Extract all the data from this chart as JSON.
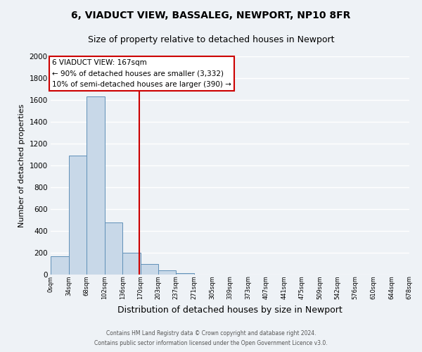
{
  "title": "6, VIADUCT VIEW, BASSALEG, NEWPORT, NP10 8FR",
  "subtitle": "Size of property relative to detached houses in Newport",
  "xlabel": "Distribution of detached houses by size in Newport",
  "ylabel": "Number of detached properties",
  "bin_edges": [
    0,
    34,
    68,
    102,
    136,
    170,
    203,
    237,
    271,
    305,
    339,
    373,
    407,
    441,
    475,
    509,
    542,
    576,
    610,
    644,
    678
  ],
  "bar_heights": [
    170,
    1090,
    1630,
    480,
    200,
    100,
    40,
    15,
    0,
    0,
    0,
    0,
    0,
    0,
    0,
    0,
    0,
    0,
    0,
    0
  ],
  "bar_color": "#c8d8e8",
  "bar_edgecolor": "#6090b8",
  "vline_x": 167,
  "vline_color": "#cc0000",
  "ylim": [
    0,
    2000
  ],
  "yticks": [
    0,
    200,
    400,
    600,
    800,
    1000,
    1200,
    1400,
    1600,
    1800,
    2000
  ],
  "xtick_labels": [
    "0sqm",
    "34sqm",
    "68sqm",
    "102sqm",
    "136sqm",
    "170sqm",
    "203sqm",
    "237sqm",
    "271sqm",
    "305sqm",
    "339sqm",
    "373sqm",
    "407sqm",
    "441sqm",
    "475sqm",
    "509sqm",
    "542sqm",
    "576sqm",
    "610sqm",
    "644sqm",
    "678sqm"
  ],
  "annotation_title": "6 VIADUCT VIEW: 167sqm",
  "annotation_line1": "← 90% of detached houses are smaller (3,332)",
  "annotation_line2": "10% of semi-detached houses are larger (390) →",
  "annotation_box_facecolor": "#ffffff",
  "annotation_box_edgecolor": "#cc0000",
  "footnote1": "Contains HM Land Registry data © Crown copyright and database right 2024.",
  "footnote2": "Contains public sector information licensed under the Open Government Licence v3.0.",
  "background_color": "#eef2f6",
  "plot_background_color": "#eef2f6",
  "grid_color": "#ffffff",
  "title_fontsize": 10,
  "subtitle_fontsize": 9,
  "ylabel_fontsize": 8,
  "xlabel_fontsize": 9
}
